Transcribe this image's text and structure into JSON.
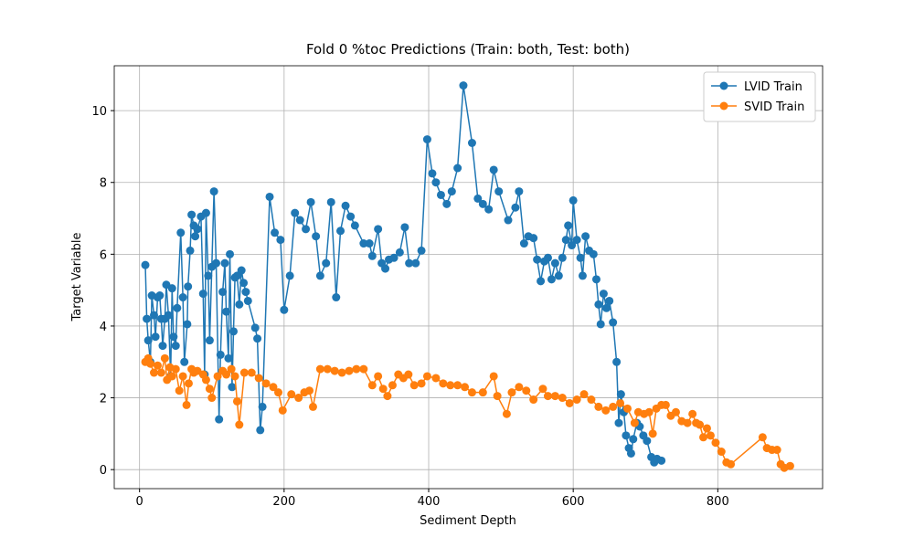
{
  "chart_data": {
    "type": "line",
    "title": "Fold 0 %toc Predictions (Train: both, Test: both)",
    "x_label": "Sediment Depth",
    "y_label": "Target Variable",
    "xlim": [
      -35,
      945
    ],
    "ylim": [
      -0.53,
      11.25
    ],
    "xticks": [
      0,
      200,
      400,
      600,
      800
    ],
    "yticks": [
      0,
      2,
      4,
      6,
      8,
      10
    ],
    "grid": true,
    "legend": "upper-right",
    "series": [
      {
        "name": "LVID Train",
        "color": "#1f77b4",
        "x": [
          8,
          10,
          12,
          15,
          17,
          20,
          22,
          25,
          28,
          30,
          32,
          35,
          37,
          40,
          43,
          45,
          47,
          50,
          52,
          57,
          60,
          62,
          66,
          67,
          70,
          72,
          75,
          77,
          80,
          85,
          88,
          90,
          92,
          95,
          97,
          100,
          103,
          106,
          110,
          112,
          115,
          118,
          120,
          123,
          125,
          128,
          130,
          132,
          135,
          138,
          141,
          144,
          147,
          150,
          160,
          163,
          167,
          170,
          180,
          187,
          195,
          200,
          208,
          215,
          222,
          230,
          237,
          244,
          250,
          258,
          265,
          272,
          278,
          285,
          292,
          298,
          310,
          318,
          322,
          330,
          335,
          340,
          345,
          352,
          360,
          367,
          373,
          382,
          390,
          398,
          405,
          410,
          417,
          425,
          432,
          440,
          448,
          460,
          468,
          475,
          483,
          490,
          497,
          510,
          520,
          525,
          532,
          538,
          545,
          550,
          555,
          560,
          565,
          570,
          575,
          580,
          585,
          590,
          593,
          598,
          600,
          605,
          610,
          613,
          617,
          622,
          628,
          632,
          635,
          638,
          642,
          646,
          650,
          655,
          660,
          663,
          666,
          670,
          673,
          677,
          680,
          683,
          688,
          692,
          697,
          702,
          708,
          712,
          716,
          722
        ],
        "values": [
          5.7,
          4.2,
          3.6,
          3.0,
          4.85,
          4.3,
          3.7,
          4.8,
          4.85,
          4.2,
          3.45,
          4.2,
          5.15,
          4.3,
          2.6,
          5.05,
          3.7,
          3.45,
          4.5,
          6.6,
          4.8,
          3.0,
          4.05,
          5.1,
          6.1,
          7.1,
          6.8,
          6.5,
          6.7,
          7.05,
          4.9,
          2.65,
          7.15,
          5.4,
          3.6,
          5.65,
          7.75,
          5.75,
          1.4,
          3.2,
          4.95,
          5.75,
          4.4,
          3.1,
          6.0,
          2.3,
          3.85,
          5.35,
          5.4,
          4.6,
          5.55,
          5.2,
          4.95,
          4.7,
          3.95,
          3.65,
          1.1,
          1.75,
          7.6,
          6.6,
          6.4,
          4.45,
          5.4,
          7.15,
          6.95,
          6.7,
          7.45,
          6.5,
          5.4,
          5.75,
          7.45,
          4.8,
          6.65,
          7.35,
          7.05,
          6.8,
          6.3,
          6.3,
          5.95,
          6.7,
          5.75,
          5.6,
          5.85,
          5.9,
          6.05,
          6.75,
          5.75,
          5.75,
          6.1,
          9.2,
          8.25,
          8.0,
          7.65,
          7.4,
          7.75,
          8.4,
          10.7,
          9.1,
          7.55,
          7.4,
          7.25,
          8.35,
          7.75,
          6.95,
          7.3,
          7.75,
          6.3,
          6.5,
          6.45,
          5.85,
          5.25,
          5.8,
          5.9,
          5.3,
          5.75,
          5.4,
          5.9,
          6.4,
          6.8,
          6.25,
          7.5,
          6.4,
          5.9,
          5.4,
          6.5,
          6.1,
          6.0,
          5.3,
          4.6,
          4.05,
          4.9,
          4.5,
          4.7,
          4.1,
          3.0,
          1.3,
          2.1,
          1.6,
          0.95,
          0.6,
          0.45,
          0.85,
          1.3,
          1.2,
          0.95,
          0.8,
          0.35,
          0.2,
          0.3,
          0.25
        ]
      },
      {
        "name": "SVID Train",
        "color": "#ff7f0e",
        "x": [
          8,
          12,
          15,
          20,
          25,
          30,
          35,
          38,
          42,
          45,
          50,
          55,
          60,
          65,
          68,
          72,
          75,
          80,
          88,
          92,
          97,
          100,
          108,
          115,
          120,
          127,
          132,
          135,
          138,
          145,
          155,
          165,
          175,
          185,
          192,
          198,
          210,
          220,
          228,
          235,
          240,
          250,
          260,
          270,
          280,
          290,
          300,
          310,
          322,
          330,
          337,
          343,
          350,
          358,
          365,
          372,
          380,
          390,
          398,
          410,
          420,
          430,
          440,
          450,
          460,
          475,
          490,
          495,
          508,
          515,
          525,
          535,
          545,
          558,
          565,
          575,
          585,
          595,
          605,
          615,
          625,
          635,
          645,
          655,
          665,
          675,
          685,
          690,
          698,
          705,
          710,
          715,
          722,
          728,
          735,
          742,
          750,
          758,
          765,
          770,
          775,
          780,
          785,
          790,
          797,
          805,
          812,
          818,
          862,
          868,
          875,
          882,
          887,
          892,
          900
        ],
        "values": [
          3.0,
          3.1,
          2.95,
          2.7,
          2.9,
          2.7,
          3.1,
          2.5,
          2.85,
          2.6,
          2.8,
          2.2,
          2.6,
          1.8,
          2.4,
          2.8,
          2.7,
          2.75,
          2.65,
          2.5,
          2.25,
          2.0,
          2.6,
          2.75,
          2.65,
          2.8,
          2.6,
          1.9,
          1.25,
          2.7,
          2.7,
          2.55,
          2.4,
          2.3,
          2.15,
          1.65,
          2.1,
          2.0,
          2.15,
          2.2,
          1.75,
          2.8,
          2.8,
          2.75,
          2.7,
          2.75,
          2.8,
          2.8,
          2.35,
          2.6,
          2.25,
          2.05,
          2.35,
          2.65,
          2.55,
          2.65,
          2.35,
          2.4,
          2.6,
          2.55,
          2.4,
          2.35,
          2.35,
          2.3,
          2.15,
          2.15,
          2.6,
          2.05,
          1.55,
          2.15,
          2.3,
          2.2,
          1.95,
          2.25,
          2.05,
          2.05,
          2.0,
          1.85,
          1.95,
          2.1,
          1.95,
          1.75,
          1.65,
          1.75,
          1.85,
          1.7,
          1.3,
          1.6,
          1.55,
          1.6,
          1.0,
          1.7,
          1.8,
          1.8,
          1.5,
          1.6,
          1.35,
          1.3,
          1.55,
          1.3,
          1.25,
          0.9,
          1.15,
          0.95,
          0.75,
          0.5,
          0.2,
          0.15,
          0.9,
          0.6,
          0.55,
          0.55,
          0.15,
          0.05,
          0.1
        ]
      }
    ]
  }
}
